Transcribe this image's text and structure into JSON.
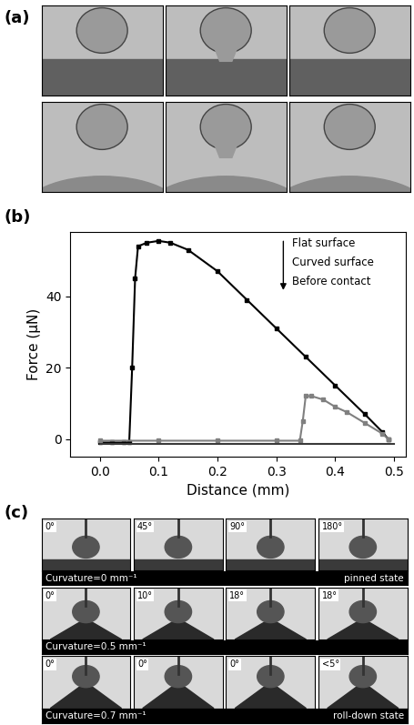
{
  "panel_labels": [
    "(a)",
    "(b)",
    "(c)"
  ],
  "chart_data": {
    "type": "line",
    "xlabel": "Distance (mm)",
    "ylabel": "Force (μN)",
    "xlim": [
      -0.05,
      0.52
    ],
    "xticks": [
      0.0,
      0.1,
      0.2,
      0.3,
      0.4,
      0.5
    ],
    "ylim": [
      -5,
      58
    ],
    "yticks": [
      0,
      20,
      40
    ],
    "series": [
      {
        "name": "Flat surface",
        "color": "#000000",
        "marker": "square",
        "line_style": "solid",
        "x": [
          0.0,
          0.02,
          0.04,
          0.05,
          0.055,
          0.06,
          0.065,
          0.08,
          0.1,
          0.12,
          0.15,
          0.2,
          0.25,
          0.3,
          0.35,
          0.4,
          0.45,
          0.48,
          0.49
        ],
        "values": [
          -1,
          -1,
          -1,
          -1,
          20,
          45,
          54,
          55,
          55.5,
          55,
          53,
          47,
          39,
          31,
          23,
          15,
          7,
          2,
          0
        ]
      },
      {
        "name": "Curved surface",
        "color": "#808080",
        "marker": "square",
        "line_style": "solid",
        "x": [
          0.0,
          0.1,
          0.2,
          0.3,
          0.34,
          0.345,
          0.35,
          0.36,
          0.38,
          0.4,
          0.42,
          0.45,
          0.48,
          0.49
        ],
        "values": [
          -0.5,
          -0.5,
          -0.5,
          -0.5,
          -0.5,
          5,
          12,
          12,
          11,
          9,
          7.5,
          4.5,
          1.5,
          0
        ]
      },
      {
        "name": "Before contact",
        "color": "#3a3a3a",
        "line_style": "solid",
        "x": [
          0.0,
          0.5
        ],
        "values": [
          -1.5,
          -1.5
        ]
      }
    ]
  },
  "panel_c": {
    "rows": [
      {
        "angles": [
          "0°",
          "45°",
          "90°",
          "180°"
        ],
        "caption": "Curvature=0 mm⁻¹",
        "state": "pinned state"
      },
      {
        "angles": [
          "0°",
          "10°",
          "18°",
          "18°"
        ],
        "caption": "Curvature=0.5 mm⁻¹"
      },
      {
        "angles": [
          "0°",
          "0°",
          "0°",
          "<5°"
        ],
        "caption": "Curvature=0.7 mm⁻¹",
        "state": "roll-down state"
      }
    ]
  }
}
